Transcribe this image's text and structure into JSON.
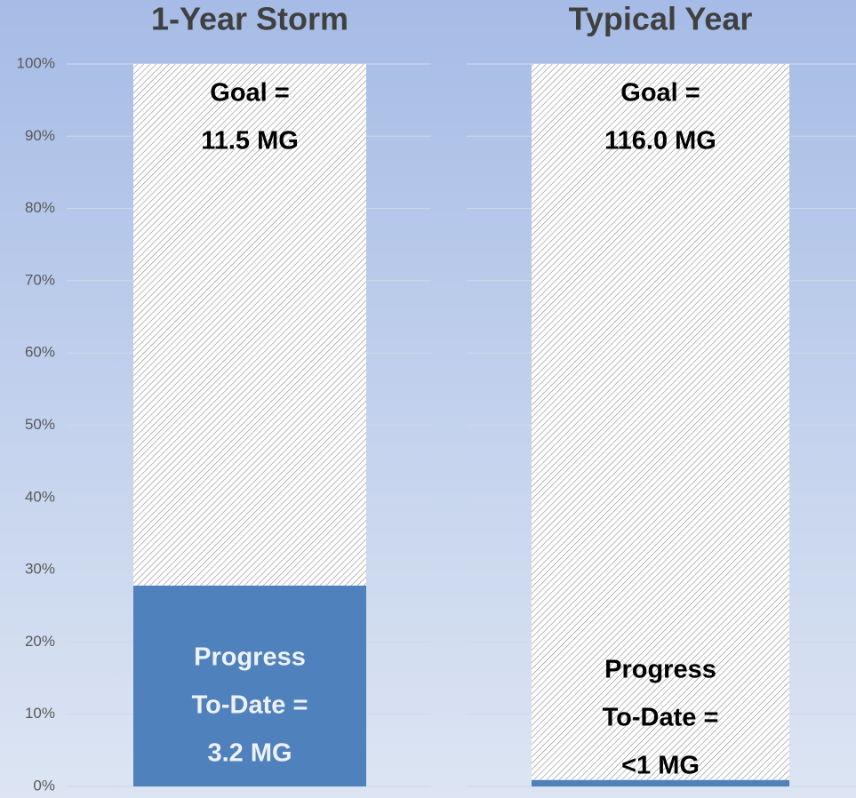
{
  "chart_data": {
    "type": "stacked_bar",
    "categories": [
      "1-Year Storm",
      "Typical Year"
    ],
    "series": [
      {
        "name": "Progress To-Date",
        "color": "#4f81bd",
        "values": [
          27.8,
          0.9
        ]
      },
      {
        "name": "Goal",
        "color": "#ffffff",
        "pattern": "hatch",
        "values": [
          72.2,
          99.1
        ]
      }
    ],
    "goal_labels": [
      [
        "Goal =",
        "11.5 MG"
      ],
      [
        "Goal =",
        "116.0 MG"
      ]
    ],
    "progress_labels": [
      [
        "Progress",
        "To-Date =",
        "3.2 MG"
      ],
      [
        "Progress",
        "To-Date =",
        "<1 MG"
      ]
    ],
    "progress_label_colors": [
      "#eef1f6",
      "#000000"
    ],
    "ylim": [
      0,
      100
    ],
    "yticks": [
      {
        "value": 0,
        "label": "0%"
      },
      {
        "value": 10,
        "label": "10%"
      },
      {
        "value": 20,
        "label": "20%"
      },
      {
        "value": 30,
        "label": "30%"
      },
      {
        "value": 40,
        "label": "40%"
      },
      {
        "value": 50,
        "label": "50%"
      },
      {
        "value": 60,
        "label": "60%"
      },
      {
        "value": 70,
        "label": "70%"
      },
      {
        "value": 80,
        "label": "80%"
      },
      {
        "value": 90,
        "label": "90%"
      },
      {
        "value": 100,
        "label": "100%"
      }
    ],
    "grid": true
  }
}
